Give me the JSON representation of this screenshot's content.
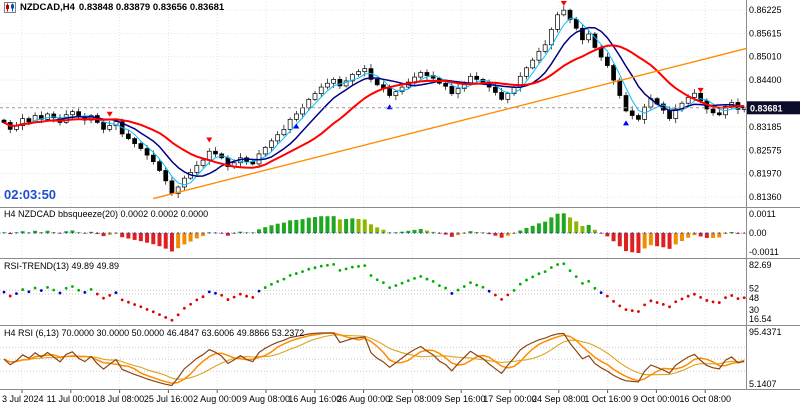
{
  "header": {
    "symbol": "NZDCAD,H4",
    "ohlc": "0.83848 0.83879 0.83656 0.83681"
  },
  "main": {
    "timer": "02:03:50",
    "current_price": "0.83681",
    "price_scale": [
      "0.86225",
      "0.85615",
      "0.85010",
      "0.84400",
      "0.83790",
      "0.83185",
      "0.82575",
      "0.81970",
      "0.81360"
    ]
  },
  "panels": {
    "bbsqueeze": {
      "label": "H4 NZDCAD bbsqueeze(20) 0.0002 0.0002 0.0000",
      "scale": [
        "0.0011",
        "0.00",
        "-0.0011"
      ]
    },
    "rsi_trend": {
      "label": "RSI-TREND(13) 49.89 49.89",
      "scale": [
        {
          "t": "82.69",
          "v": 82.69
        },
        {
          "t": "52",
          "v": 52
        },
        {
          "t": "48",
          "v": 48
        },
        {
          "t": "30",
          "v": 30
        },
        {
          "t": "16.54",
          "v": 16.54
        }
      ],
      "levels": [
        52,
        48
      ]
    },
    "rsi": {
      "label": "H4 RSI (6,13) 70.0000 30.0000 50.0000 46.4847 63.6006 49.8866 53.2372",
      "scale": [
        {
          "t": "95.4371",
          "v": 95.4371
        },
        {
          "t": "5.1407",
          "v": 5.1407
        }
      ],
      "levels": [
        70,
        50,
        30
      ]
    }
  },
  "time_axis": [
    "3 Jul 2024",
    "11 Jul 00:00",
    "18 Jul 08:00",
    "25 Jul 16:00",
    "2 Aug 00:00",
    "9 Aug 08:00",
    "16 Aug 16:00",
    "26 Aug 00:00",
    "2 Sep 08:00",
    "9 Sep 16:00",
    "17 Sep 00:00",
    "24 Sep 08:00",
    "1 Oct 16:00",
    "9 Oct 00:00",
    "16 Oct 08:00"
  ],
  "colors": {
    "up_candle": "#FFFFFF",
    "down_candle": "#000000",
    "candle_outline": "#000000",
    "ma_fast": "#00BFFF",
    "ma_mid": "#000080",
    "ma_slow": "#FF0000",
    "trendline": "#FF8C00",
    "timer": "#1E4FD0",
    "price_tag_bg": "#0B0B2A",
    "price_tag_text": "#FFFFFF",
    "hist_up_strong": "#1FA71F",
    "hist_up_weak": "#8DB600",
    "hist_down_strong": "#E02020",
    "hist_down_weak": "#F08C00",
    "dot_high": "#00B000",
    "dot_low": "#E00000",
    "dot_mid": "#0000D0",
    "squeeze_dot": "#2244CC",
    "rsi_fast": "#8B4513",
    "rsi_signal": "#FF8C00",
    "rsi_slow": "#DAA520",
    "grid": "#E4E4E4",
    "level_line": "#C8C8C8",
    "separator": "#8C8C8C",
    "signal_sell": "#FF0000",
    "signal_buy": "#0000FF",
    "current_line": "#999999"
  },
  "chart_data": {
    "type": "candlestick",
    "symbol": "NZDCAD",
    "timeframe": "H4",
    "title": "NZDCAD,H4",
    "ohlc_display": {
      "open": 0.83848,
      "high": 0.83879,
      "low": 0.83656,
      "close": 0.83681
    },
    "y_axis_range": [
      0.8136,
      0.86225
    ],
    "x_range": [
      "3 Jul 2024",
      "16 Oct 08:00"
    ],
    "closes": [
      0.833,
      0.8312,
      0.8322,
      0.834,
      0.8331,
      0.8348,
      0.8338,
      0.8352,
      0.8342,
      0.833,
      0.835,
      0.8358,
      0.8344,
      0.8336,
      0.8348,
      0.833,
      0.8312,
      0.8322,
      0.8332,
      0.83,
      0.8288,
      0.8275,
      0.8262,
      0.8245,
      0.8228,
      0.8205,
      0.8178,
      0.8145,
      0.8162,
      0.8185,
      0.82,
      0.8218,
      0.8232,
      0.8255,
      0.8248,
      0.8238,
      0.8215,
      0.8225,
      0.8238,
      0.8228,
      0.8222,
      0.8248,
      0.8265,
      0.8282,
      0.8298,
      0.8312,
      0.8338,
      0.8352,
      0.8368,
      0.839,
      0.8405,
      0.8422,
      0.8432,
      0.8442,
      0.8425,
      0.8438,
      0.8455,
      0.8462,
      0.847,
      0.8442,
      0.8428,
      0.8418,
      0.84,
      0.841,
      0.8422,
      0.8435,
      0.8448,
      0.846,
      0.8452,
      0.8445,
      0.8432,
      0.8424,
      0.8405,
      0.8418,
      0.8432,
      0.845,
      0.8442,
      0.8435,
      0.8422,
      0.8408,
      0.839,
      0.8405,
      0.8422,
      0.845,
      0.8472,
      0.8492,
      0.8515,
      0.8532,
      0.8572,
      0.861,
      0.8622,
      0.8598,
      0.8575,
      0.8545,
      0.856,
      0.8525,
      0.85,
      0.8478,
      0.844,
      0.84,
      0.836,
      0.8348,
      0.8338,
      0.837,
      0.8392,
      0.8378,
      0.8362,
      0.834,
      0.8365,
      0.838,
      0.8395,
      0.8406,
      0.8386,
      0.8365,
      0.8355,
      0.835,
      0.8372,
      0.8382,
      0.8364,
      0.83681
    ],
    "trendline": {
      "bar1": 24,
      "price1": 0.8132,
      "bar2": 120,
      "price2": 0.8525
    },
    "signals": [
      {
        "bar": 17,
        "price": 0.835,
        "dir": "sell"
      },
      {
        "bar": 33,
        "price": 0.8283,
        "dir": "sell"
      },
      {
        "bar": 47,
        "price": 0.8322,
        "dir": "buy"
      },
      {
        "bar": 62,
        "price": 0.8372,
        "dir": "buy"
      },
      {
        "bar": 90,
        "price": 0.8638,
        "dir": "sell"
      },
      {
        "bar": 100,
        "price": 0.833,
        "dir": "buy"
      },
      {
        "bar": 112,
        "price": 0.8412,
        "dir": "sell"
      }
    ],
    "indicators": {
      "moving_averages": [
        {
          "period": 4,
          "color_key": "ma_fast",
          "width": 1
        },
        {
          "period": 8,
          "color_key": "ma_mid",
          "width": 1.5
        },
        {
          "period": 16,
          "color_key": "ma_slow",
          "width": 2
        }
      ],
      "bbsqueeze_period": 20,
      "rsi_trend_period": 13,
      "rsi_periods": [
        6,
        13
      ]
    }
  }
}
